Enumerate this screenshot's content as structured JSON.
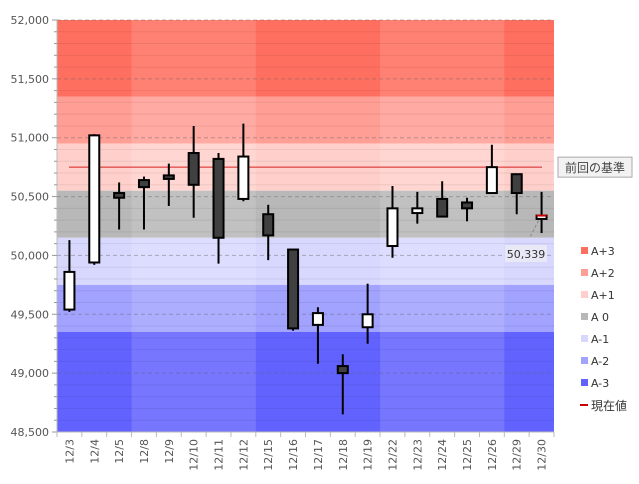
{
  "chart_data": {
    "type": "candlestick",
    "title": "",
    "xlabel": "",
    "ylabel": "",
    "ylim": [
      48500,
      52000
    ],
    "y_ticks": [
      48500,
      49000,
      49500,
      50000,
      50500,
      51000,
      51500,
      52000
    ],
    "y_tick_labels": [
      "48,500",
      "49,000",
      "49,500",
      "50,000",
      "50,500",
      "51,000",
      "51,500",
      "52,000"
    ],
    "grid": true,
    "categories": [
      "12/3",
      "12/4",
      "12/5",
      "12/8",
      "12/9",
      "12/10",
      "12/11",
      "12/12",
      "12/15",
      "12/16",
      "12/17",
      "12/18",
      "12/19",
      "12/22",
      "12/23",
      "12/24",
      "12/25",
      "12/26",
      "12/29",
      "12/30"
    ],
    "ohlc": [
      {
        "o": 49540,
        "h": 50130,
        "l": 49520,
        "c": 49860
      },
      {
        "o": 49940,
        "h": 51030,
        "l": 49920,
        "c": 51020
      },
      {
        "o": 50530,
        "h": 50620,
        "l": 50220,
        "c": 50490
      },
      {
        "o": 50640,
        "h": 50670,
        "l": 50220,
        "c": 50580
      },
      {
        "o": 50680,
        "h": 50780,
        "l": 50420,
        "c": 50650
      },
      {
        "o": 50870,
        "h": 51100,
        "l": 50320,
        "c": 50600
      },
      {
        "o": 50820,
        "h": 50870,
        "l": 49930,
        "c": 50150
      },
      {
        "o": 50480,
        "h": 51120,
        "l": 50460,
        "c": 50840
      },
      {
        "o": 50350,
        "h": 50430,
        "l": 49960,
        "c": 50170
      },
      {
        "o": 50050,
        "h": 50050,
        "l": 49360,
        "c": 49380
      },
      {
        "o": 49410,
        "h": 49560,
        "l": 49080,
        "c": 49510
      },
      {
        "o": 49060,
        "h": 49160,
        "l": 48650,
        "c": 49000
      },
      {
        "o": 49390,
        "h": 49760,
        "l": 49250,
        "c": 49500
      },
      {
        "o": 50080,
        "h": 50590,
        "l": 49980,
        "c": 50400
      },
      {
        "o": 50360,
        "h": 50540,
        "l": 50270,
        "c": 50400
      },
      {
        "o": 50480,
        "h": 50630,
        "l": 50330,
        "c": 50330
      },
      {
        "o": 50450,
        "h": 50490,
        "l": 50290,
        "c": 50400
      },
      {
        "o": 50530,
        "h": 50940,
        "l": 50530,
        "c": 50750
      },
      {
        "o": 50690,
        "h": 50690,
        "l": 50350,
        "c": 50530
      },
      {
        "o": 50310,
        "h": 50540,
        "l": 50190,
        "c": 50339
      }
    ],
    "bands": [
      {
        "name": "A+3",
        "from": 51350,
        "to": 52000,
        "color": "#ff6f60"
      },
      {
        "name": "A+2",
        "from": 50950,
        "to": 51350,
        "color": "#ff9e95"
      },
      {
        "name": "A+1",
        "from": 50550,
        "to": 50950,
        "color": "#ffd0cb"
      },
      {
        "name": "A 0",
        "from": 50150,
        "to": 50550,
        "color": "#b8b8b8"
      },
      {
        "name": "A-1",
        "from": 49750,
        "to": 50150,
        "color": "#d8d8ff"
      },
      {
        "name": "A-2",
        "from": 49350,
        "to": 49750,
        "color": "#a2a2ff"
      },
      {
        "name": "A-3",
        "from": 48500,
        "to": 49350,
        "color": "#6262ff"
      }
    ],
    "reference_line": {
      "value": 50750,
      "label": "前回の基準",
      "color": "#d62020"
    },
    "current_value": {
      "value": 50339,
      "label": "50,339",
      "legend": "現在値",
      "color": "#cc0000"
    },
    "legend_placement": "right",
    "up_color": "#ffffff",
    "down_color": "#404040"
  }
}
